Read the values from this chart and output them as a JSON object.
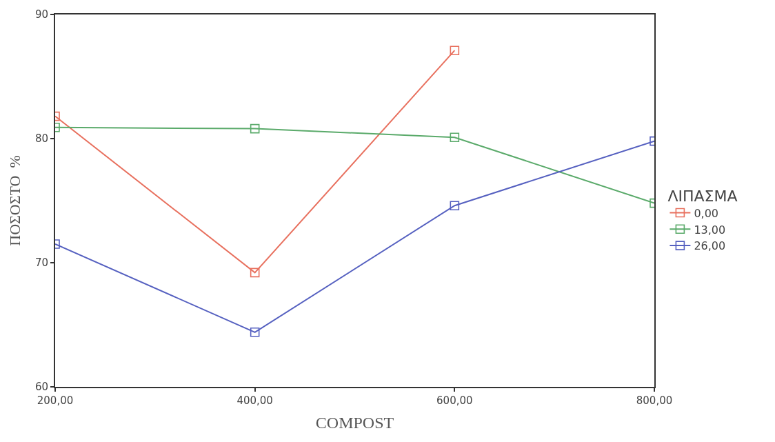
{
  "chart_data": {
    "type": "line",
    "xlabel": "COMPOST",
    "ylabel": "ΠΟΣΟΣΤΟ  %",
    "legend_title": "ΛΙΠΑΣΜΑ",
    "x": [
      200,
      400,
      600,
      800
    ],
    "xlim": [
      200,
      800
    ],
    "xticks": [
      {
        "value": 200,
        "label": "200,00"
      },
      {
        "value": 400,
        "label": "400,00"
      },
      {
        "value": 600,
        "label": "600,00"
      },
      {
        "value": 800,
        "label": "800,00"
      }
    ],
    "ylim": [
      60,
      90
    ],
    "yticks": [
      60,
      70,
      80,
      90
    ],
    "legend": "right",
    "marker": "square",
    "line_style": "solid",
    "series": [
      {
        "name": "0,00",
        "color": "#e8705e",
        "values": [
          81.8,
          69.2,
          87.1,
          null
        ]
      },
      {
        "name": "13,00",
        "color": "#5aaa6a",
        "values": [
          80.9,
          80.8,
          80.1,
          74.8
        ]
      },
      {
        "name": "26,00",
        "color": "#5560c0",
        "values": [
          71.5,
          64.4,
          74.6,
          79.8
        ]
      }
    ]
  }
}
